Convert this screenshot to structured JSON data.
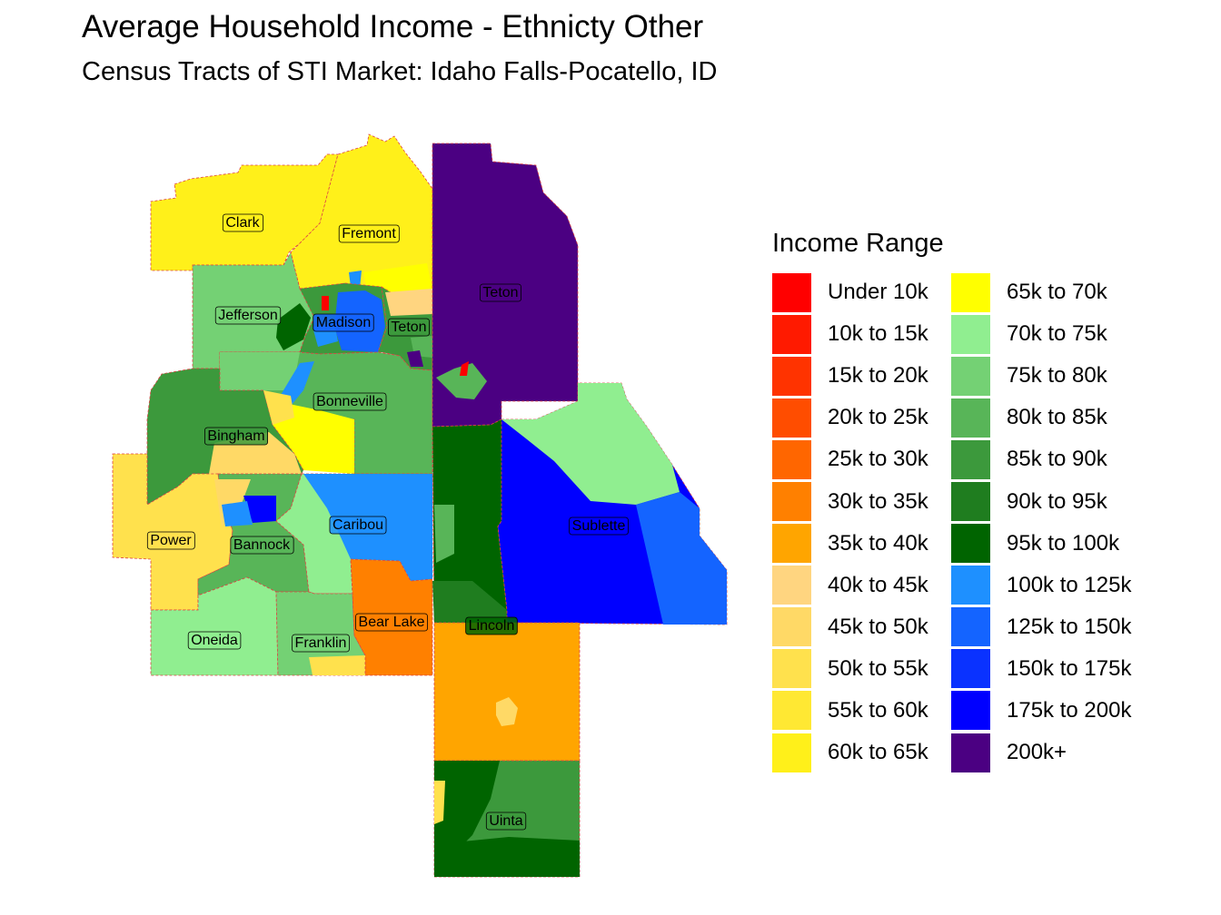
{
  "title": "Average Household Income - Ethnicty Other",
  "subtitle": "Census Tracts of STI Market: Idaho Falls-Pocatello, ID",
  "legend": {
    "title": "Income Range",
    "items": [
      {
        "label": "Under 10k",
        "color": "#FF0000"
      },
      {
        "label": "10k to 15k",
        "color": "#FF1A00"
      },
      {
        "label": "15k to 20k",
        "color": "#FF3300"
      },
      {
        "label": "20k to 25k",
        "color": "#FF4D00"
      },
      {
        "label": "25k to 30k",
        "color": "#FF6600"
      },
      {
        "label": "30k to 35k",
        "color": "#FF8000"
      },
      {
        "label": "35k to 40k",
        "color": "#FFA500"
      },
      {
        "label": "40k to 45k",
        "color": "#FFD580"
      },
      {
        "label": "45k to 50k",
        "color": "#FFD966"
      },
      {
        "label": "50k to 55k",
        "color": "#FFE14D"
      },
      {
        "label": "55k to 60k",
        "color": "#FFE833"
      },
      {
        "label": "60k to 65k",
        "color": "#FFF01A"
      },
      {
        "label": "65k to 70k",
        "color": "#FFFF00"
      },
      {
        "label": "70k to 75k",
        "color": "#90EE90"
      },
      {
        "label": "75k to 80k",
        "color": "#74D174"
      },
      {
        "label": "80k to 85k",
        "color": "#58B558"
      },
      {
        "label": "85k to 90k",
        "color": "#3C993C"
      },
      {
        "label": "90k to 95k",
        "color": "#1F7D1F"
      },
      {
        "label": "95k to 100k",
        "color": "#006400"
      },
      {
        "label": "100k to 125k",
        "color": "#1E90FF"
      },
      {
        "label": "125k to 150k",
        "color": "#1464FF"
      },
      {
        "label": "150k to 175k",
        "color": "#0A32FF"
      },
      {
        "label": "175k to 200k",
        "color": "#0000FF"
      },
      {
        "label": "200k+",
        "color": "#4B0082"
      }
    ]
  },
  "counties": [
    {
      "name": "Clark",
      "color": "#FFF01A"
    },
    {
      "name": "Fremont",
      "color": "#FFF01A"
    },
    {
      "name": "Jefferson",
      "color": "#74D174"
    },
    {
      "name": "Madison",
      "color": "#1464FF"
    },
    {
      "name": "Teton",
      "color": "#4B0082"
    },
    {
      "name": "Teton",
      "color": "#3C993C"
    },
    {
      "name": "Bonneville",
      "color": "#58B558"
    },
    {
      "name": "Bingham",
      "color": "#3C993C"
    },
    {
      "name": "Power",
      "color": "#FFE14D"
    },
    {
      "name": "Bannock",
      "color": "#58B558"
    },
    {
      "name": "Caribou",
      "color": "#1E90FF"
    },
    {
      "name": "Oneida",
      "color": "#90EE90"
    },
    {
      "name": "Franklin",
      "color": "#74D174"
    },
    {
      "name": "Bear Lake",
      "color": "#FF8000"
    },
    {
      "name": "Lincoln",
      "color": "#006400"
    },
    {
      "name": "Sublette",
      "color": "#0000FF"
    },
    {
      "name": "Uinta",
      "color": "#3C993C"
    }
  ]
}
